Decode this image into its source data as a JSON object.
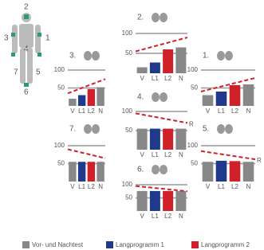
{
  "chart_data": [
    {
      "type": "bar",
      "title": "1.",
      "categories": [
        "V",
        "L1",
        "L2",
        "N"
      ],
      "values": [
        30,
        40,
        58,
        60
      ],
      "colors": [
        "#888888",
        "#1f3a8a",
        "#d0202a",
        "#888888"
      ],
      "trend": [
        40,
        78
      ],
      "ylim": [
        0,
        110
      ],
      "yticks": [
        50,
        100
      ],
      "grid": true
    },
    {
      "type": "bar",
      "title": "2.",
      "categories": [
        "V",
        "L1",
        "L2",
        "N"
      ],
      "values": [
        15,
        27,
        60,
        65
      ],
      "colors": [
        "#888888",
        "#1f3a8a",
        "#d0202a",
        "#888888"
      ],
      "trend": [
        55,
        90
      ],
      "ylim": [
        0,
        110
      ],
      "yticks": [
        50,
        100
      ],
      "grid": true
    },
    {
      "type": "bar",
      "title": "3.",
      "categories": [
        "V",
        "L1",
        "L2",
        "N"
      ],
      "values": [
        20,
        30,
        47,
        52
      ],
      "colors": [
        "#888888",
        "#1f3a8a",
        "#d0202a",
        "#888888"
      ],
      "trend": [
        35,
        75
      ],
      "ylim": [
        0,
        110
      ],
      "yticks": [
        50,
        100
      ],
      "grid": true
    },
    {
      "type": "bar",
      "title": "4.",
      "categories": [
        "V",
        "L1",
        "L2",
        "N"
      ],
      "values": [
        55,
        55,
        55,
        55
      ],
      "colors": [
        "#888888",
        "#1f3a8a",
        "#d0202a",
        "#888888"
      ],
      "trend": [
        95,
        70
      ],
      "annotation": "R",
      "ylim": [
        0,
        110
      ],
      "yticks": [
        50,
        100
      ],
      "grid": true
    },
    {
      "type": "bar",
      "title": "5.",
      "categories": [
        "V",
        "L1",
        "L2",
        "N"
      ],
      "values": [
        55,
        58,
        57,
        55
      ],
      "colors": [
        "#888888",
        "#1f3a8a",
        "#d0202a",
        "#888888"
      ],
      "trend": [
        85,
        62
      ],
      "annotation": "R",
      "ylim": [
        0,
        110
      ],
      "yticks": [
        50,
        100
      ],
      "grid": true
    },
    {
      "type": "bar",
      "title": "6.",
      "categories": [
        "V",
        "L1",
        "L2",
        "N"
      ],
      "values": [
        76,
        76,
        76,
        76
      ],
      "colors": [
        "#888888",
        "#1f3a8a",
        "#d0202a",
        "#888888"
      ],
      "trend": [
        95,
        75
      ],
      "ylim": [
        0,
        110
      ],
      "yticks": [
        50,
        100
      ],
      "grid": true
    },
    {
      "type": "bar",
      "title": "7.",
      "categories": [
        "V",
        "L1",
        "L2",
        "N"
      ],
      "values": [
        55,
        55,
        55,
        55
      ],
      "colors": [
        "#888888",
        "#1f3a8a",
        "#d0202a",
        "#888888"
      ],
      "trend": [
        90,
        65
      ],
      "ylim": [
        0,
        110
      ],
      "yticks": [
        50,
        100
      ],
      "grid": true
    }
  ],
  "body_labels": [
    "1",
    "2",
    "3",
    "4",
    "5",
    "6",
    "7"
  ],
  "legend": [
    {
      "name": "Vor- und Nachtest",
      "color": "#888888"
    },
    {
      "name": "Langprogramm 1",
      "color": "#1f3a8a"
    },
    {
      "name": "Langprogramm 2",
      "color": "#d0202a"
    }
  ]
}
